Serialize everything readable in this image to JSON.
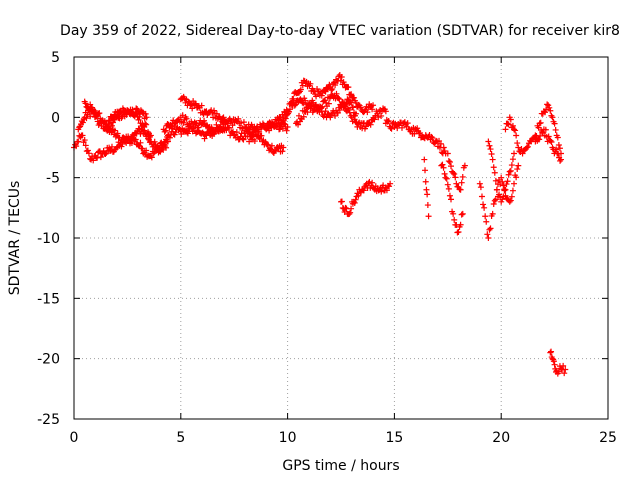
{
  "chart_data": {
    "type": "scatter",
    "title": "Day 359 of 2022, Sidereal Day-to-day VTEC variation (SDTVAR) for receiver kir8",
    "xlabel": "GPS time / hours",
    "ylabel": "SDTVAR / TECUs",
    "xlim": [
      0,
      25
    ],
    "ylim": [
      -25,
      5
    ],
    "xticks": [
      0,
      5,
      10,
      15,
      20,
      25
    ],
    "yticks": [
      5,
      0,
      -5,
      -10,
      -15,
      -20,
      -25
    ],
    "grid": true,
    "marker": "+",
    "series": [
      {
        "name": "SDTVAR",
        "color": "#ff0000",
        "tracks": [
          {
            "x": [
              0.0,
              0.2,
              0.4,
              0.6,
              0.8,
              1.0,
              1.3,
              1.6,
              2.0,
              2.4,
              2.8,
              3.2,
              3.6,
              4.0
            ],
            "y": [
              -2.5,
              -2.0,
              -1.5,
              -2.8,
              -3.5,
              -3.2,
              -3.0,
              -2.8,
              -2.5,
              -2.0,
              -1.8,
              -2.6,
              -3.2,
              -2.5
            ]
          },
          {
            "x": [
              0.2,
              0.5,
              0.8,
              1.1,
              1.4,
              1.7,
              2.0,
              2.4,
              2.8,
              3.2,
              3.6,
              4.0,
              4.4
            ],
            "y": [
              -1.0,
              0.0,
              0.5,
              0.2,
              -0.5,
              -1.0,
              -1.5,
              -2.0,
              -1.5,
              -1.0,
              -2.0,
              -2.8,
              -2.0
            ]
          },
          {
            "x": [
              0.5,
              0.8,
              1.2,
              1.6,
              2.0,
              2.4,
              2.8,
              3.2,
              3.6
            ],
            "y": [
              1.3,
              0.8,
              -0.5,
              -1.0,
              0.0,
              0.5,
              0.3,
              -0.5,
              -1.5
            ]
          },
          {
            "x": [
              1.5,
              1.8,
              2.2,
              2.6,
              3.0,
              3.4
            ],
            "y": [
              -1.0,
              0.0,
              0.5,
              0.3,
              0.5,
              0.0
            ]
          },
          {
            "x": [
              4.0,
              4.4,
              4.8,
              5.2,
              5.6,
              6.0,
              6.4,
              6.8,
              7.2,
              7.6,
              8.0,
              8.4,
              8.8,
              9.2,
              9.6,
              10.0
            ],
            "y": [
              -2.5,
              -1.5,
              -1.0,
              -1.2,
              -0.8,
              -0.5,
              -1.0,
              -0.8,
              -0.5,
              -0.3,
              -0.8,
              -1.0,
              -0.8,
              -0.5,
              -0.5,
              -0.8
            ]
          },
          {
            "x": [
              4.2,
              4.6,
              5.0,
              5.4,
              5.8,
              6.2,
              6.6,
              7.0,
              7.4,
              7.8,
              8.2,
              8.6
            ],
            "y": [
              -1.0,
              -0.5,
              0.0,
              -0.5,
              -1.2,
              -1.5,
              -1.2,
              -1.0,
              -1.3,
              -1.6,
              -1.3,
              -1.0
            ]
          },
          {
            "x": [
              5.0,
              5.4,
              5.8,
              6.2,
              6.6,
              7.0
            ],
            "y": [
              1.5,
              1.2,
              0.8,
              0.5,
              0.3,
              0.0
            ]
          },
          {
            "x": [
              8.2,
              8.6,
              9.0,
              9.4,
              9.8
            ],
            "y": [
              -2.0,
              -1.5,
              -2.2,
              -2.8,
              -2.5
            ]
          },
          {
            "x": [
              9.0,
              9.4,
              9.8,
              10.2,
              10.6,
              11.0,
              11.4,
              11.8,
              12.2,
              12.6,
              13.0,
              13.4,
              13.8,
              14.2,
              14.6
            ],
            "y": [
              -1.0,
              -0.5,
              0.0,
              1.0,
              1.5,
              1.0,
              0.5,
              1.2,
              1.8,
              1.0,
              0.0,
              -0.8,
              -0.5,
              0.3,
              0.5
            ]
          },
          {
            "x": [
              9.6,
              10.0,
              10.4,
              10.8,
              11.2,
              11.6,
              12.0,
              12.4,
              12.8,
              13.2,
              13.6,
              14.0
            ],
            "y": [
              -1.0,
              0.5,
              2.0,
              3.0,
              2.2,
              1.8,
              2.5,
              3.4,
              2.5,
              1.2,
              0.5,
              1.0
            ]
          },
          {
            "x": [
              10.4,
              10.8,
              11.2,
              11.6,
              12.0,
              12.4,
              12.8,
              13.2
            ],
            "y": [
              -0.5,
              0.5,
              1.2,
              0.5,
              0.0,
              0.8,
              1.5,
              0.3
            ]
          },
          {
            "x": [
              12.5,
              12.8,
              13.1,
              13.4,
              13.7,
              14.0,
              14.3,
              14.6,
              14.8
            ],
            "y": [
              -7.0,
              -8.0,
              -7.0,
              -6.2,
              -5.5,
              -5.8,
              -6.0,
              -5.8,
              -5.5
            ]
          },
          {
            "x": [
              14.6,
              15.0,
              15.4,
              15.8,
              16.2,
              16.6,
              17.0,
              17.4
            ],
            "y": [
              -0.5,
              -0.8,
              -0.5,
              -1.0,
              -1.3,
              -1.6,
              -2.0,
              -3.0
            ]
          },
          {
            "x": [
              16.4,
              16.5,
              16.6
            ],
            "y": [
              -3.5,
              -6.0,
              -8.2
            ]
          },
          {
            "x": [
              17.2,
              17.4,
              17.6,
              17.8,
              18.0,
              18.2
            ],
            "y": [
              -4.0,
              -5.0,
              -6.5,
              -8.5,
              -9.5,
              -8.0
            ]
          },
          {
            "x": [
              17.5,
              17.7,
              17.9,
              18.1,
              18.3
            ],
            "y": [
              -3.0,
              -4.5,
              -5.5,
              -6.0,
              -4.0
            ]
          },
          {
            "x": [
              19.0,
              19.2,
              19.4,
              19.6,
              19.8,
              20.0,
              20.2,
              20.4,
              20.6,
              20.8
            ],
            "y": [
              -5.5,
              -7.5,
              -10.0,
              -8.0,
              -6.0,
              -5.0,
              -6.5,
              -7.0,
              -5.5,
              -4.0
            ]
          },
          {
            "x": [
              19.4,
              19.6,
              19.8,
              20.0,
              20.2,
              20.4,
              20.6
            ],
            "y": [
              -2.0,
              -3.5,
              -6.0,
              -7.0,
              -6.0,
              -4.5,
              -3.0
            ]
          },
          {
            "x": [
              20.2,
              20.4,
              20.6,
              20.8,
              21.0,
              21.2,
              21.4,
              21.6,
              21.8,
              22.0,
              22.2,
              22.4,
              22.6,
              22.8
            ],
            "y": [
              -1.0,
              0.0,
              -1.0,
              -2.5,
              -3.0,
              -2.5,
              -2.0,
              -1.5,
              -0.5,
              0.5,
              1.0,
              0.0,
              -1.5,
              -3.0
            ]
          },
          {
            "x": [
              21.6,
              22.0,
              22.4,
              22.8
            ],
            "y": [
              -2.0,
              -1.0,
              -2.5,
              -3.5
            ]
          },
          {
            "x": [
              22.3,
              22.4,
              22.5,
              22.6,
              22.8,
              23.0
            ],
            "y": [
              -19.5,
              -20.0,
              -20.5,
              -21.0,
              -20.8,
              -20.9
            ]
          }
        ]
      }
    ]
  }
}
